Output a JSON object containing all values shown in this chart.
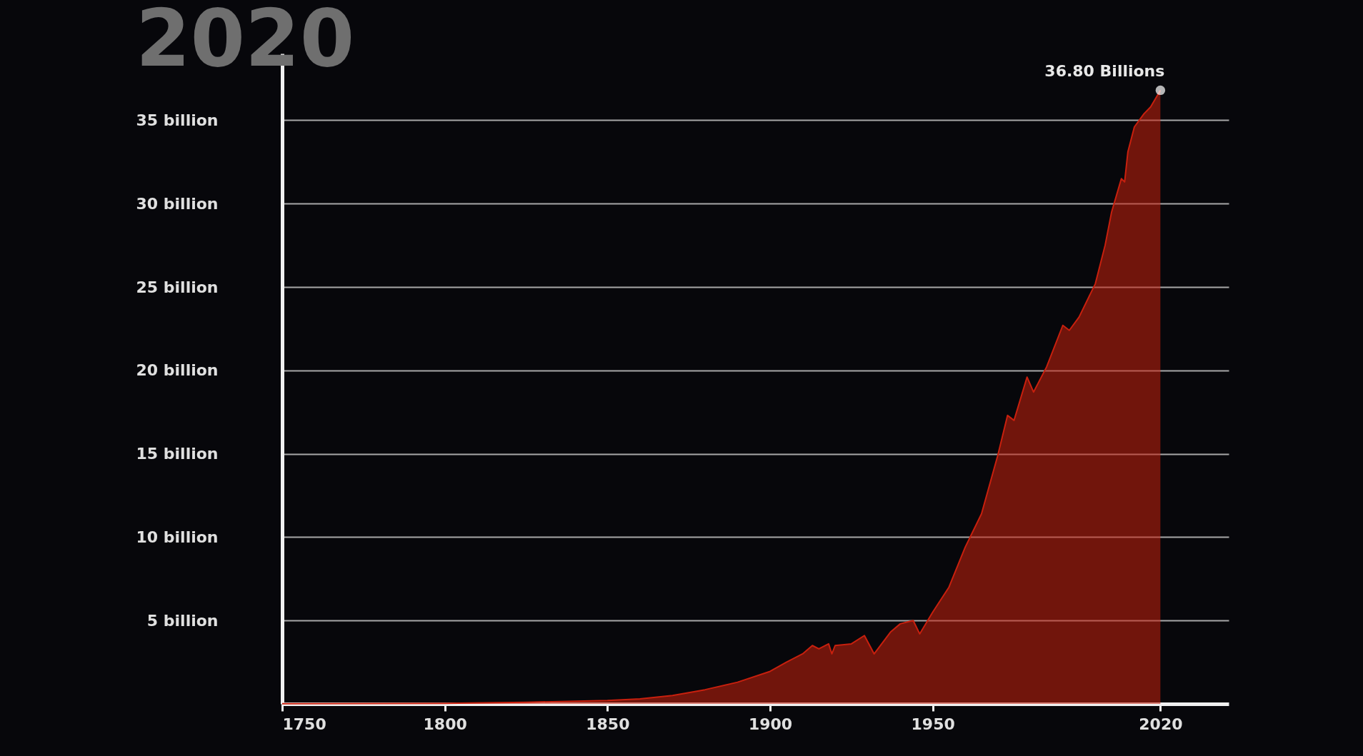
{
  "chart_data": {
    "type": "area",
    "title": "2020",
    "x": [
      1750,
      1775,
      1800,
      1825,
      1850,
      1860,
      1870,
      1880,
      1890,
      1900,
      1905,
      1910,
      1913,
      1915,
      1918,
      1919,
      1920,
      1925,
      1929,
      1932,
      1937,
      1940,
      1944,
      1946,
      1950,
      1955,
      1960,
      1965,
      1970,
      1973,
      1975,
      1979,
      1981,
      1985,
      1990,
      1992,
      1995,
      2000,
      2003,
      2005,
      2008,
      2009,
      2010,
      2012,
      2015,
      2017,
      2020
    ],
    "series": [
      {
        "color": "#c8200e",
        "values": [
          0.01,
          0.02,
          0.03,
          0.1,
          0.2,
          0.3,
          0.5,
          0.85,
          1.3,
          1.95,
          2.5,
          3.0,
          3.5,
          3.3,
          3.6,
          3.0,
          3.5,
          3.6,
          4.1,
          3.0,
          4.3,
          4.8,
          5.0,
          4.2,
          5.5,
          7.0,
          9.4,
          11.4,
          14.9,
          17.3,
          17.0,
          19.6,
          18.7,
          20.2,
          22.7,
          22.4,
          23.2,
          25.2,
          27.5,
          29.5,
          31.5,
          31.3,
          33.1,
          34.6,
          35.4,
          35.8,
          36.8
        ]
      }
    ],
    "xlim": [
      1750,
      2041
    ],
    "ylim": [
      0,
      39
    ],
    "xticks": [
      1750,
      1800,
      1850,
      1900,
      1950,
      2020
    ],
    "yticks": [
      {
        "value": 5,
        "label": "5 billion"
      },
      {
        "value": 10,
        "label": "10 billion"
      },
      {
        "value": 15,
        "label": "15 billion"
      },
      {
        "value": 20,
        "label": "20 billion"
      },
      {
        "value": 25,
        "label": "25 billion"
      },
      {
        "value": 30,
        "label": "30 billion"
      },
      {
        "value": 35,
        "label": "35 billion"
      }
    ],
    "grid": "y",
    "annotations": [
      {
        "text": "36.80 Billions",
        "x": 2020,
        "y": 36.8
      }
    ]
  }
}
